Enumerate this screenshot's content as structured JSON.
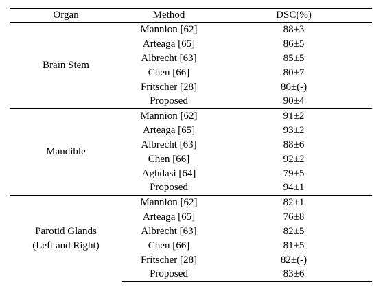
{
  "header": {
    "organ": "Organ",
    "method": "Method",
    "dsc": "DSC(%)"
  },
  "groups": [
    {
      "organ_lines": [
        "Brain Stem"
      ],
      "rows": [
        {
          "method": "Mannion [62]",
          "dsc": "88±3"
        },
        {
          "method": "Arteaga [65]",
          "dsc": "86±5"
        },
        {
          "method": "Albrecht [63]",
          "dsc": "85±5"
        },
        {
          "method": "Chen [66]",
          "dsc": "80±7"
        },
        {
          "method": "Fritscher [28]",
          "dsc": "86±(-)"
        },
        {
          "method": "Proposed",
          "dsc": "90±4",
          "bold": true
        }
      ]
    },
    {
      "organ_lines": [
        "Mandible"
      ],
      "rows": [
        {
          "method": "Mannion [62]",
          "dsc": "91±2"
        },
        {
          "method": "Arteaga [65]",
          "dsc": "93±2"
        },
        {
          "method": "Albrecht [63]",
          "dsc": "88±6"
        },
        {
          "method": "Chen [66]",
          "dsc": "92±2"
        },
        {
          "method": "Aghdasi [64]",
          "dsc": "79±5"
        },
        {
          "method": "Proposed",
          "dsc": "94±1",
          "bold": true
        }
      ]
    },
    {
      "organ_lines": [
        "Parotid Glands",
        "(Left and Right)"
      ],
      "rows": [
        {
          "method": "Mannion [62]",
          "dsc": "82±1"
        },
        {
          "method": "Arteaga [65]",
          "dsc": "76±8"
        },
        {
          "method": "Albrecht [63]",
          "dsc": "82±5"
        },
        {
          "method": "Chen [66]",
          "dsc": "81±5"
        },
        {
          "method": "Fritscher [28]",
          "dsc": "82±(-)"
        },
        {
          "method": "Proposed",
          "dsc": "83±6",
          "bold": true
        }
      ]
    }
  ]
}
